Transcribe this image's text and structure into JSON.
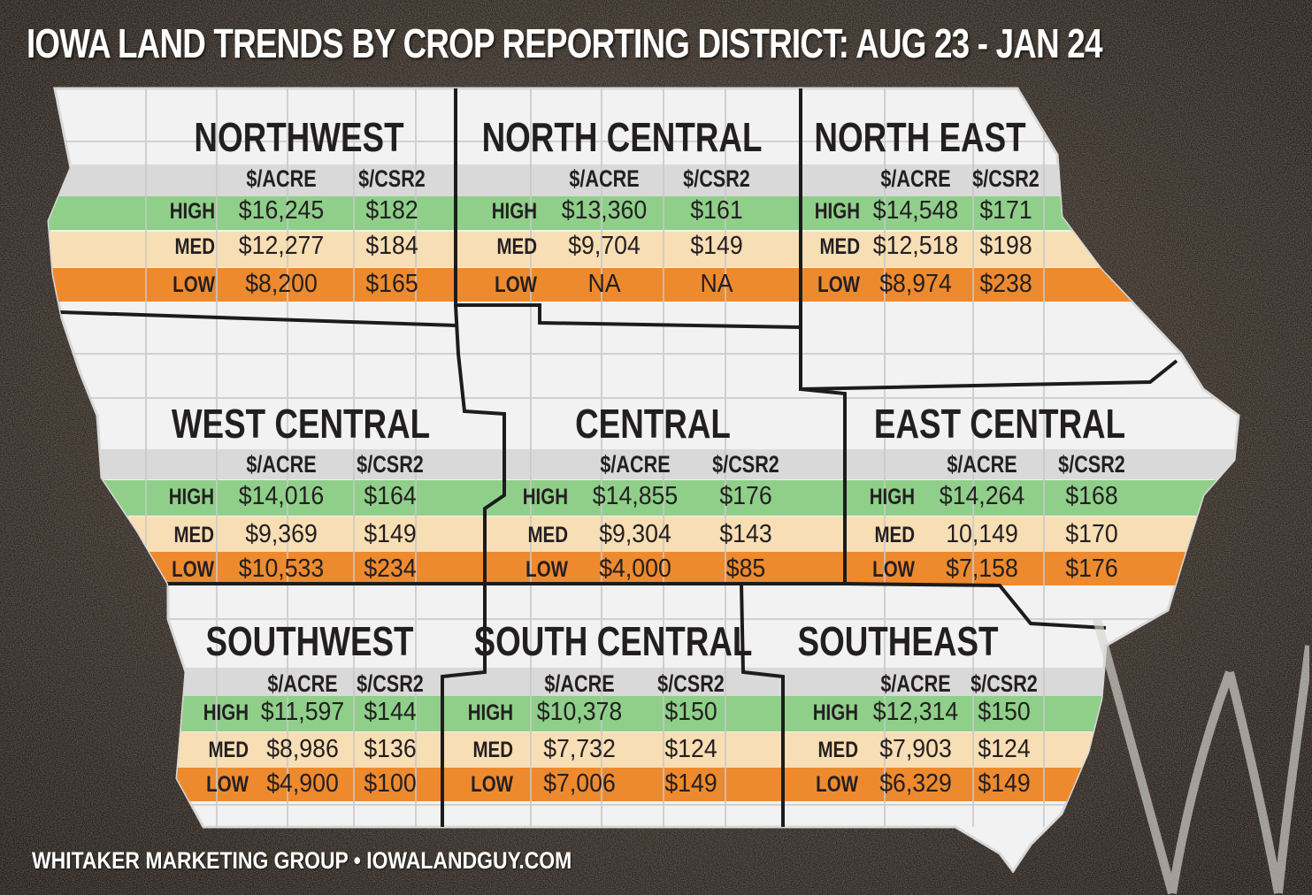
{
  "title": "IOWA LAND TRENDS BY CROP REPORTING DISTRICT: AUG 23 - JAN 24",
  "footer": "WHITAKER MARKETING GROUP  •  IOWALANDGUY.COM",
  "colors": {
    "high": "#8fcf8a",
    "med": "#f8deb4",
    "low": "#ee8a2e",
    "header": "#d9d9d9",
    "map": "#f1f1f1",
    "border": "#1c1c1c"
  },
  "districts": [
    {
      "name": "NORTHWEST",
      "col_acre": "$/ACRE",
      "col_csr": "$/CSR2",
      "rows": [
        {
          "label": "HIGH",
          "acre": "$16,245",
          "csr": "$182"
        },
        {
          "label": "MED",
          "acre": "$12,277",
          "csr": "$184"
        },
        {
          "label": "LOW",
          "acre": "$8,200",
          "csr": "$165"
        }
      ]
    },
    {
      "name": "NORTH CENTRAL",
      "col_acre": "$/ACRE",
      "col_csr": "$/CSR2",
      "rows": [
        {
          "label": "HIGH",
          "acre": "$13,360",
          "csr": "$161"
        },
        {
          "label": "MED",
          "acre": "$9,704",
          "csr": "$149"
        },
        {
          "label": "LOW",
          "acre": "NA",
          "csr": "NA"
        }
      ]
    },
    {
      "name": "NORTH EAST",
      "col_acre": "$/ACRE",
      "col_csr": "$/CSR2",
      "rows": [
        {
          "label": "HIGH",
          "acre": "$14,548",
          "csr": "$171"
        },
        {
          "label": "MED",
          "acre": "$12,518",
          "csr": "$198"
        },
        {
          "label": "LOW",
          "acre": "$8,974",
          "csr": "$238"
        }
      ]
    },
    {
      "name": "WEST CENTRAL",
      "col_acre": "$/ACRE",
      "col_csr": "$/CSR2",
      "rows": [
        {
          "label": "HIGH",
          "acre": "$14,016",
          "csr": "$164"
        },
        {
          "label": "MED",
          "acre": "$9,369",
          "csr": "$149"
        },
        {
          "label": "LOW",
          "acre": "$10,533",
          "csr": "$234"
        }
      ]
    },
    {
      "name": "CENTRAL",
      "col_acre": "$/ACRE",
      "col_csr": "$/CSR2",
      "rows": [
        {
          "label": "HIGH",
          "acre": "$14,855",
          "csr": "$176"
        },
        {
          "label": "MED",
          "acre": "$9,304",
          "csr": "$143"
        },
        {
          "label": "LOW",
          "acre": "$4,000",
          "csr": "$85"
        }
      ]
    },
    {
      "name": "EAST CENTRAL",
      "col_acre": "$/ACRE",
      "col_csr": "$/CSR2",
      "rows": [
        {
          "label": "HIGH",
          "acre": "$14,264",
          "csr": "$168"
        },
        {
          "label": "MED",
          "acre": "10,149",
          "csr": "$170"
        },
        {
          "label": "LOW",
          "acre": "$7,158",
          "csr": "$176"
        }
      ]
    },
    {
      "name": "SOUTHWEST",
      "col_acre": "$/ACRE",
      "col_csr": "$/CSR2",
      "rows": [
        {
          "label": "HIGH",
          "acre": "$11,597",
          "csr": "$144"
        },
        {
          "label": "MED",
          "acre": "$8,986",
          "csr": "$136"
        },
        {
          "label": "LOW",
          "acre": "$4,900",
          "csr": "$100"
        }
      ]
    },
    {
      "name": "SOUTH CENTRAL",
      "col_acre": "$/ACRE",
      "col_csr": "$/CSR2",
      "rows": [
        {
          "label": "HIGH",
          "acre": "$10,378",
          "csr": "$150"
        },
        {
          "label": "MED",
          "acre": "$7,732",
          "csr": "$124"
        },
        {
          "label": "LOW",
          "acre": "$7,006",
          "csr": "$149"
        }
      ]
    },
    {
      "name": "SOUTHEAST",
      "col_acre": "$/ACRE",
      "col_csr": "$/CSR2",
      "rows": [
        {
          "label": "HIGH",
          "acre": "$12,314",
          "csr": "$150"
        },
        {
          "label": "MED",
          "acre": "$7,903",
          "csr": "$124"
        },
        {
          "label": "LOW",
          "acre": "$6,329",
          "csr": "$149"
        }
      ]
    }
  ]
}
